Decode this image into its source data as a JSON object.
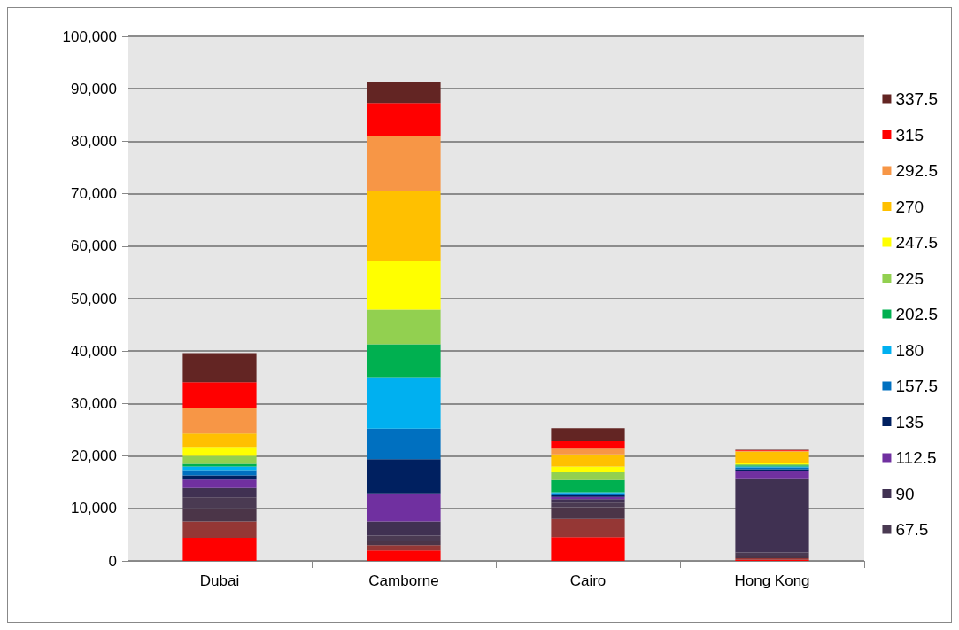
{
  "chart_data": {
    "type": "bar",
    "stacked": true,
    "categories": [
      "Dubai",
      "Camborne",
      "Cairo",
      "Hong Kong"
    ],
    "ylim": [
      0,
      100000
    ],
    "yticks": [
      0,
      {
        "value": 10000,
        "label": "10,000"
      },
      {
        "value": 20000,
        "label": "20,000"
      },
      {
        "value": 30000,
        "label": "30,000"
      },
      {
        "value": 40000,
        "label": "40,000"
      },
      {
        "value": 50000,
        "label": "50,000"
      },
      {
        "value": 60000,
        "label": "60,000"
      },
      {
        "value": 70000,
        "label": "70,000"
      },
      {
        "value": 80000,
        "label": "80,000"
      },
      {
        "value": 90000,
        "label": "90,000"
      },
      {
        "value": 100000,
        "label": "100,000"
      }
    ],
    "grid": "y",
    "legend": "right",
    "series": [
      {
        "color": "#ff0000",
        "values": [
          4400,
          2000,
          4500,
          200
        ]
      },
      {
        "color": "#953735",
        "values": [
          3100,
          1000,
          3500,
          300
        ]
      },
      {
        "color": "#4b3548",
        "values": [
          2500,
          800,
          2200,
          400
        ]
      },
      {
        "name": "67.5",
        "color": "#4a3a52",
        "values": [
          2100,
          1000,
          900,
          700
        ]
      },
      {
        "name": "90",
        "color": "#403152",
        "values": [
          1800,
          2700,
          700,
          14000
        ]
      },
      {
        "name": "112.5",
        "color": "#7030a0",
        "values": [
          1600,
          5400,
          400,
          1600
        ]
      },
      {
        "name": "135",
        "color": "#002060",
        "values": [
          800,
          6500,
          300,
          300
        ]
      },
      {
        "name": "157.5",
        "color": "#0070c0",
        "values": [
          1000,
          5800,
          400,
          300
        ]
      },
      {
        "name": "180",
        "color": "#00b0f0",
        "values": [
          700,
          9700,
          200,
          200
        ]
      },
      {
        "name": "202.5",
        "color": "#00b050",
        "values": [
          500,
          6400,
          2300,
          200
        ]
      },
      {
        "name": "225",
        "color": "#92d050",
        "values": [
          1500,
          6600,
          1500,
          200
        ]
      },
      {
        "name": "247.5",
        "color": "#ffff00",
        "values": [
          1600,
          9300,
          1100,
          200
        ]
      },
      {
        "name": "270",
        "color": "#ffc000",
        "values": [
          2700,
          13300,
          2300,
          2200
        ]
      },
      {
        "name": "292.5",
        "color": "#f79646",
        "values": [
          4900,
          10400,
          1100,
          200
        ]
      },
      {
        "name": "315",
        "color": "#ff0000",
        "values": [
          4900,
          6400,
          1400,
          100
        ]
      },
      {
        "name": "337.5",
        "color": "#632523",
        "values": [
          5500,
          4000,
          2500,
          100
        ]
      }
    ]
  }
}
